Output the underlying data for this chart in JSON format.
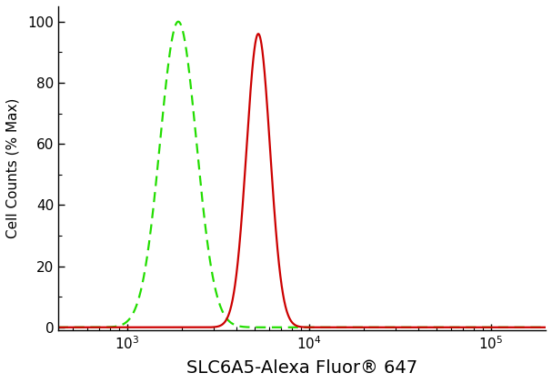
{
  "title": "",
  "xlabel": "SLC6A5-Alexa Fluor® 647",
  "ylabel": "Cell Counts (% Max)",
  "xlim_log": [
    2.62,
    5.3
  ],
  "ylim": [
    -1,
    105
  ],
  "yticks": [
    0,
    20,
    40,
    60,
    80,
    100
  ],
  "green_peak_log": 3.28,
  "green_sigma_log": 0.1,
  "green_height": 100,
  "red_peak_log": 3.72,
  "red_sigma_log": 0.065,
  "red_height": 96,
  "green_color": "#22dd00",
  "red_color": "#cc0000",
  "bg_color": "#ffffff",
  "plot_bg_color": "#ffffff",
  "linewidth": 1.6,
  "xlabel_fontsize": 14,
  "ylabel_fontsize": 11,
  "tick_fontsize": 11,
  "fig_width": 6.07,
  "fig_height": 4.21,
  "dpi": 100
}
